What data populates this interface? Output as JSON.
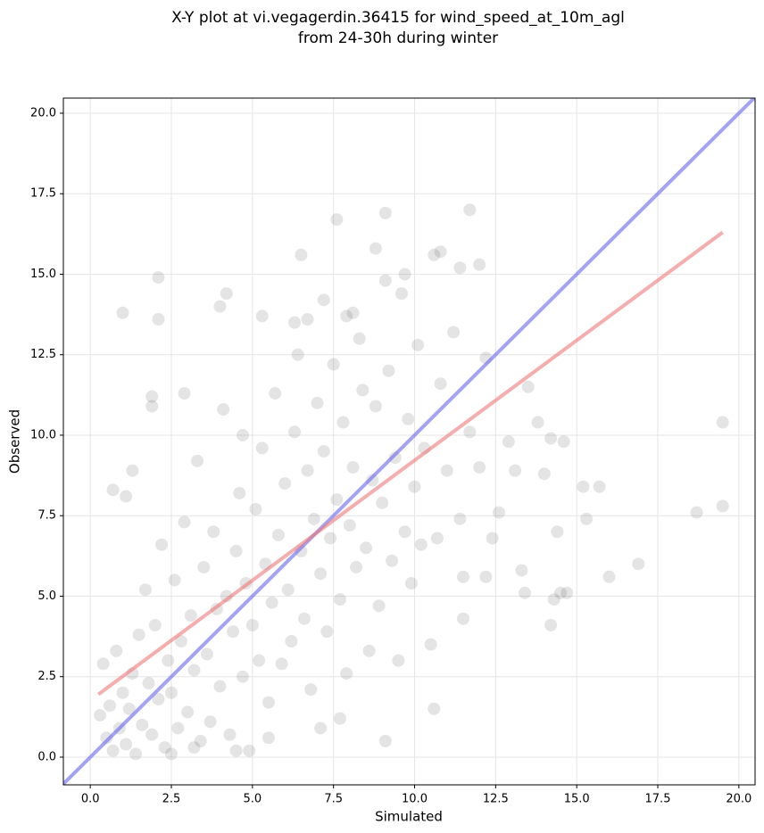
{
  "chart_data": {
    "type": "scatter",
    "title": "X-Y plot at vi.vegagerdin.36415 for wind_speed_at_10m_agl",
    "subtitle": "from 24-30h during winter",
    "x_label": "Simulated",
    "y_label": "Observed",
    "xlim": [
      -0.83,
      20.5
    ],
    "ylim": [
      -0.86,
      20.47
    ],
    "xticks": [
      {
        "value": 0,
        "label": "0.0"
      },
      {
        "value": 2.5,
        "label": "2.5"
      },
      {
        "value": 5,
        "label": "5.0"
      },
      {
        "value": 7.5,
        "label": "7.5"
      },
      {
        "value": 10,
        "label": "10.0"
      },
      {
        "value": 12.5,
        "label": "12.5"
      },
      {
        "value": 15,
        "label": "15.0"
      },
      {
        "value": 17.5,
        "label": "17.5"
      },
      {
        "value": 20,
        "label": "20.0"
      }
    ],
    "yticks": [
      {
        "value": 0,
        "label": "0.0"
      },
      {
        "value": 2.5,
        "label": "2.5"
      },
      {
        "value": 5,
        "label": "5.0"
      },
      {
        "value": 7.5,
        "label": "7.5"
      },
      {
        "value": 10,
        "label": "10.0"
      },
      {
        "value": 12.5,
        "label": "12.5"
      },
      {
        "value": 15,
        "label": "15.0"
      },
      {
        "value": 17.5,
        "label": "17.5"
      },
      {
        "value": 20,
        "label": "20.0"
      }
    ],
    "grid": true,
    "color": "#555555",
    "x": [
      0.3,
      0.4,
      0.5,
      0.6,
      0.7,
      0.8,
      0.9,
      1.0,
      1.1,
      1.2,
      1.3,
      1.4,
      1.5,
      1.6,
      1.7,
      1.8,
      1.9,
      2.0,
      2.1,
      2.2,
      2.3,
      2.4,
      2.5,
      2.6,
      2.7,
      2.8,
      2.9,
      3.0,
      3.1,
      3.2,
      3.3,
      3.4,
      3.5,
      3.6,
      3.7,
      3.8,
      3.9,
      4.0,
      4.1,
      4.2,
      4.3,
      4.4,
      4.5,
      4.6,
      4.7,
      4.8,
      4.9,
      5.0,
      5.1,
      5.2,
      5.3,
      5.4,
      5.5,
      5.6,
      5.7,
      5.8,
      5.9,
      6.0,
      6.1,
      6.2,
      6.3,
      6.4,
      6.5,
      6.6,
      6.7,
      6.8,
      6.9,
      7.0,
      7.1,
      7.2,
      7.3,
      7.4,
      7.5,
      7.6,
      7.7,
      7.8,
      7.9,
      8.0,
      8.1,
      8.2,
      8.3,
      8.4,
      8.5,
      8.6,
      8.7,
      8.8,
      8.9,
      9.0,
      9.1,
      9.2,
      9.3,
      9.4,
      9.5,
      9.6,
      9.7,
      9.8,
      9.9,
      10.0,
      10.1,
      10.2,
      10.3,
      10.5,
      10.6,
      10.7,
      10.8,
      11.0,
      11.2,
      11.4,
      11.5,
      11.7,
      12.0,
      12.2,
      12.4,
      12.6,
      12.9,
      13.1,
      13.3,
      13.5,
      13.8,
      14.0,
      14.2,
      14.6,
      19.5,
      19.5,
      18.7,
      16.9,
      16.0,
      15.7,
      15.2,
      15.3,
      14.5,
      14.2,
      14.4,
      14.3,
      11.7,
      9.1,
      7.6,
      4.2,
      2.1,
      1.0,
      2.1,
      6.5,
      10.8,
      10.6,
      12.0,
      11.4,
      8.8,
      9.7,
      0.7,
      1.1,
      1.3,
      1.9,
      1.9,
      2.9,
      4.0,
      4.7,
      5.3,
      6.3,
      6.7,
      7.2,
      7.9,
      8.1,
      9.1,
      11.5,
      12.2,
      13.4,
      14.7,
      2.5,
      3.2,
      4.5,
      5.5,
      7.1,
      7.7
    ],
    "values": [
      1.3,
      2.9,
      0.6,
      1.6,
      0.2,
      3.3,
      0.9,
      2.0,
      0.4,
      1.5,
      2.6,
      0.1,
      3.8,
      1.0,
      5.2,
      2.3,
      0.7,
      4.1,
      1.8,
      6.6,
      0.3,
      3.0,
      2.0,
      5.5,
      0.9,
      3.6,
      7.3,
      1.4,
      4.4,
      2.7,
      9.2,
      0.5,
      5.9,
      3.2,
      1.1,
      7.0,
      4.6,
      2.2,
      10.8,
      5.0,
      0.7,
      3.9,
      6.4,
      8.2,
      2.5,
      5.4,
      0.2,
      4.1,
      7.7,
      3.0,
      9.6,
      6.0,
      1.7,
      4.8,
      11.3,
      6.9,
      2.9,
      8.5,
      5.2,
      3.6,
      10.1,
      12.5,
      6.4,
      4.3,
      8.9,
      2.1,
      7.4,
      11.0,
      5.7,
      9.5,
      3.9,
      6.8,
      12.2,
      8.0,
      4.9,
      10.4,
      2.6,
      7.2,
      9.0,
      5.9,
      13.0,
      11.4,
      6.5,
      3.3,
      8.6,
      10.9,
      4.7,
      7.9,
      0.5,
      12.0,
      6.1,
      9.3,
      3.0,
      14.4,
      7.0,
      10.5,
      5.4,
      8.4,
      12.8,
      6.6,
      9.6,
      3.5,
      1.5,
      6.8,
      11.6,
      8.9,
      13.2,
      7.4,
      5.6,
      10.1,
      9.0,
      12.4,
      6.8,
      7.6,
      9.8,
      8.9,
      5.8,
      11.5,
      10.4,
      8.8,
      9.9,
      9.8,
      10.4,
      7.8,
      7.6,
      6.0,
      5.6,
      8.4,
      8.4,
      7.4,
      5.1,
      4.1,
      7.0,
      4.9,
      17.0,
      16.9,
      16.7,
      14.4,
      14.9,
      13.8,
      13.6,
      15.6,
      15.7,
      15.6,
      15.3,
      15.2,
      15.8,
      15.0,
      8.3,
      8.1,
      8.9,
      11.2,
      10.9,
      11.3,
      14.0,
      10.0,
      13.7,
      13.5,
      13.6,
      14.2,
      13.7,
      13.8,
      14.8,
      4.3,
      5.6,
      5.1,
      5.1,
      0.1,
      0.3,
      0.2,
      0.6,
      0.9,
      1.2
    ],
    "lines": [
      {
        "color": "#6666ee",
        "x": [
          -0.83,
          20.5
        ],
        "values": [
          -0.83,
          20.5
        ]
      },
      {
        "color": "#ee7777",
        "x": [
          0.25,
          19.5
        ],
        "values": [
          1.95,
          16.3
        ]
      }
    ]
  }
}
